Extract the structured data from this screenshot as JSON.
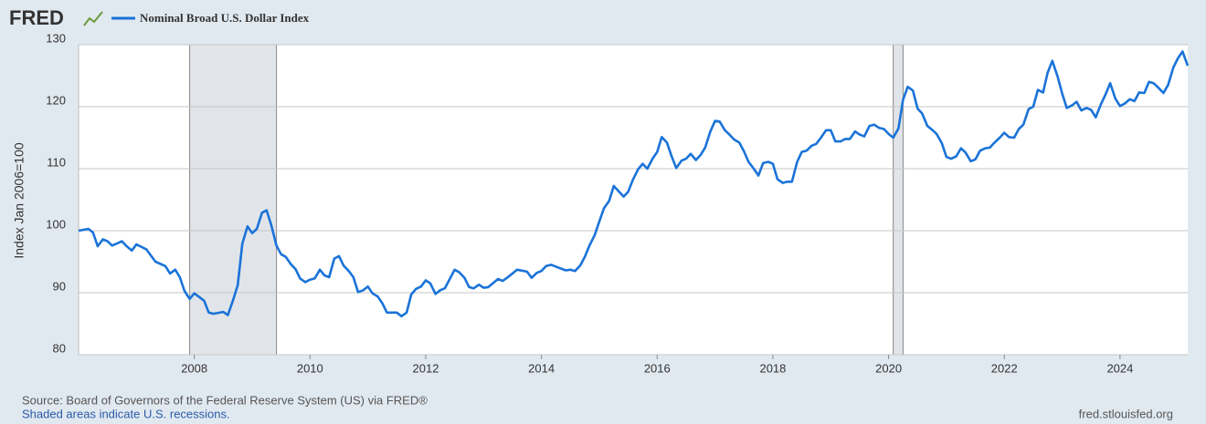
{
  "logo": "FRED",
  "chart_data": {
    "type": "line",
    "series": [
      {
        "name": "Nominal Broad U.S. Dollar Index",
        "color": "#1a73d8",
        "values": [
          100.0,
          100.3,
          99.7,
          97.5,
          98.6,
          98.3,
          97.6,
          98.3,
          97.5,
          96.8,
          97.8,
          97.0,
          95.0,
          94.3,
          93.1,
          93.7,
          92.5,
          90.3,
          89.0,
          89.9,
          88.7,
          86.8,
          86.6,
          86.9,
          86.4,
          88.8,
          91.2,
          97.9,
          100.7,
          99.6,
          100.3,
          102.9,
          103.3,
          100.9,
          97.6,
          96.2,
          95.8,
          94.6,
          93.8,
          92.3,
          91.7,
          92.1,
          92.3,
          93.7,
          92.8,
          92.5,
          95.5,
          95.9,
          94.4,
          93.5,
          92.5,
          90.1,
          90.4,
          91.0,
          89.9,
          89.4,
          88.3,
          86.8,
          86.8,
          86.2,
          86.8,
          89.7,
          90.6,
          91.0,
          92.0,
          91.5,
          89.8,
          90.4,
          90.7,
          92.3,
          93.7,
          93.3,
          92.4,
          90.9,
          90.7,
          91.3,
          90.8,
          90.9,
          92.2,
          91.9,
          92.5,
          93.7,
          93.4,
          92.4,
          93.2,
          93.5,
          94.3,
          94.5,
          94.2,
          93.6,
          93.7,
          93.5,
          94.4,
          95.8,
          97.6,
          99.3,
          101.5,
          103.6,
          104.8,
          107.2,
          106.4,
          105.5,
          106.3,
          108.2,
          109.9,
          110.8,
          110.0,
          111.6,
          112.7,
          115.1,
          114.2,
          112.0,
          110.1,
          111.3,
          111.6,
          112.4,
          111.4,
          112.2,
          113.4,
          116.0,
          117.7,
          117.6,
          116.2,
          115.5,
          114.7,
          114.2,
          112.8,
          111.1,
          110.0,
          108.9,
          110.9,
          111.1,
          110.8,
          108.3,
          107.7,
          107.9,
          107.9,
          111.1,
          112.7,
          112.9,
          113.7,
          114.0,
          115.0,
          116.2,
          116.2,
          114.4,
          114.4,
          114.8,
          114.8,
          116.0,
          115.5,
          115.2,
          116.9,
          117.1,
          116.6,
          116.4,
          115.6,
          115.0,
          116.5,
          121.1,
          123.2,
          122.6,
          119.7,
          118.9,
          116.9,
          116.3,
          115.6,
          114.1,
          111.9,
          111.6,
          112.0,
          113.3,
          112.6,
          111.2,
          111.5,
          112.9,
          113.3,
          113.4,
          114.2,
          115.0,
          115.8,
          115.1,
          115.0,
          116.4,
          117.1,
          119.6,
          120.0,
          122.7,
          122.3,
          125.5,
          127.4,
          124.9,
          122.1,
          119.8,
          120.2,
          120.8,
          119.4,
          119.8,
          119.5,
          118.3,
          120.4,
          122.0,
          123.8,
          121.3,
          120.1,
          120.5,
          121.2,
          120.9,
          122.3,
          122.2,
          124.0,
          123.8,
          123.0,
          122.2,
          123.5,
          126.3,
          127.8,
          128.9,
          126.6
        ]
      }
    ],
    "x": [
      2006.0,
      2006.17,
      2006.25,
      2006.33,
      2006.42,
      2006.5,
      2006.58,
      2006.75,
      2006.83,
      2006.92,
      2007.0,
      2007.17,
      2007.33,
      2007.5,
      2007.58,
      2007.67,
      2007.75,
      2007.83,
      2007.92,
      2008.0,
      2008.17,
      2008.25,
      2008.33,
      2008.5,
      2008.58,
      2008.67,
      2008.75,
      2008.83,
      2008.92,
      2009.0,
      2009.08,
      2009.17,
      2009.25,
      2009.33,
      2009.42,
      2009.5,
      2009.58,
      2009.67,
      2009.75,
      2009.83,
      2009.92,
      2010.0,
      2010.08,
      2010.17,
      2010.25,
      2010.33,
      2010.42,
      2010.5,
      2010.58,
      2010.67,
      2010.75,
      2010.83,
      2010.92,
      2011.0,
      2011.08,
      2011.17,
      2011.25,
      2011.33,
      2011.5,
      2011.58,
      2011.67,
      2011.75,
      2011.83,
      2011.92,
      2012.0,
      2012.08,
      2012.17,
      2012.25,
      2012.33,
      2012.42,
      2012.5,
      2012.58,
      2012.67,
      2012.75,
      2012.83,
      2012.92,
      2013.0,
      2013.08,
      2013.25,
      2013.33,
      2013.42,
      2013.58,
      2013.75,
      2013.83,
      2013.92,
      2014.0,
      2014.08,
      2014.17,
      2014.25,
      2014.42,
      2014.5,
      2014.58,
      2014.67,
      2014.75,
      2014.83,
      2014.92,
      2015.0,
      2015.08,
      2015.17,
      2015.25,
      2015.33,
      2015.42,
      2015.5,
      2015.58,
      2015.67,
      2015.75,
      2015.83,
      2015.92,
      2016.0,
      2016.08,
      2016.17,
      2016.25,
      2016.33,
      2016.42,
      2016.5,
      2016.58,
      2016.67,
      2016.75,
      2016.83,
      2016.92,
      2017.0,
      2017.08,
      2017.17,
      2017.25,
      2017.33,
      2017.42,
      2017.5,
      2017.58,
      2017.67,
      2017.75,
      2017.83,
      2017.92,
      2018.0,
      2018.08,
      2018.17,
      2018.25,
      2018.33,
      2018.42,
      2018.5,
      2018.58,
      2018.67,
      2018.75,
      2018.83,
      2018.92,
      2019.0,
      2019.08,
      2019.17,
      2019.25,
      2019.33,
      2019.42,
      2019.5,
      2019.58,
      2019.67,
      2019.75,
      2019.83,
      2019.92,
      2020.0,
      2020.08,
      2020.17,
      2020.25,
      2020.33,
      2020.42,
      2020.5,
      2020.58,
      2020.67,
      2020.75,
      2020.83,
      2020.92,
      2021.0,
      2021.08,
      2021.17,
      2021.25,
      2021.33,
      2021.42,
      2021.5,
      2021.58,
      2021.67,
      2021.75,
      2021.83,
      2021.92,
      2022.0,
      2022.08,
      2022.17,
      2022.25,
      2022.33,
      2022.42,
      2022.5,
      2022.58,
      2022.67,
      2022.75,
      2022.83,
      2022.92,
      2023.0,
      2023.08,
      2023.17,
      2023.25,
      2023.33,
      2023.42,
      2023.5,
      2023.58,
      2023.67,
      2023.75,
      2023.83,
      2023.92,
      2024.0,
      2024.08,
      2024.17,
      2024.25,
      2024.33,
      2024.42,
      2024.5,
      2024.58,
      2024.67,
      2024.75,
      2024.83,
      2024.92,
      2025.0,
      2025.08,
      2025.17
    ],
    "ylabel": "Index Jan 2006=100",
    "xlim": [
      2006,
      2025.17
    ],
    "ylim": [
      80,
      130
    ],
    "xticks": [
      2008,
      2010,
      2012,
      2014,
      2016,
      2018,
      2020,
      2022,
      2024
    ],
    "yticks": [
      80,
      90,
      100,
      110,
      120,
      130
    ],
    "grid": true,
    "recessions": [
      [
        2007.92,
        2009.42
      ],
      [
        2020.08,
        2020.25
      ]
    ],
    "recession_color": "#e1e5ea"
  },
  "footer": {
    "source": "Source: Board of Governors of the Federal Reserve System (US) via FRED®",
    "note": "Shaded areas indicate U.S. recessions.",
    "url": "fred.stlouisfed.org"
  }
}
